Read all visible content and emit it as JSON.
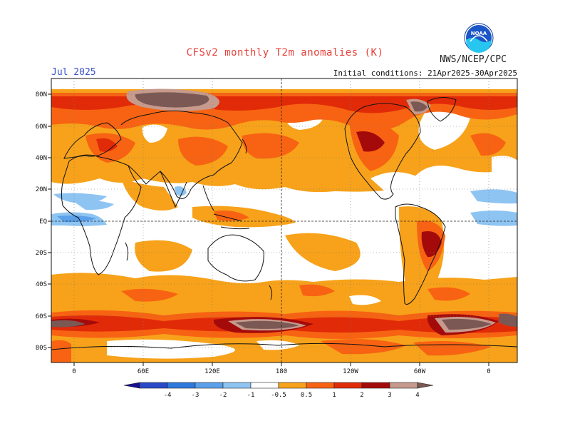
{
  "header": {
    "title": "CFSv2 monthly T2m anomalies (K)",
    "month": "Jul 2025",
    "agency": "NWS/NCEP/CPC",
    "initial_conditions": "Initial conditions: 21Apr2025-30Apr2025",
    "logo_text": "NOAA"
  },
  "axes": {
    "lat_labels": [
      "80N",
      "60N",
      "40N",
      "20N",
      "EQ",
      "20S",
      "40S",
      "60S",
      "80S"
    ],
    "lon_labels": [
      "0",
      "60E",
      "120E",
      "180",
      "120W",
      "60W",
      "0"
    ]
  },
  "colorbar": {
    "labels": [
      "-4",
      "-3",
      "-2",
      "-1",
      "-0.5",
      "0.5",
      "1",
      "2",
      "3",
      "4"
    ],
    "colors": [
      "#1a0f94",
      "#2a49c8",
      "#2d79dc",
      "#5aa0ea",
      "#8ec4f2",
      "#ffffff",
      "#f7a21a",
      "#f76312",
      "#e12b08",
      "#a50a0a",
      "#c69a8c",
      "#7b5853"
    ]
  },
  "chart_data": {
    "type": "heatmap",
    "title": "CFSv2 monthly T2m anomalies (K)",
    "variable": "T2m anomaly",
    "units": "K",
    "valid_month": "Jul 2025",
    "lat_range": [
      -90,
      90
    ],
    "lon_range": [
      -20,
      380
    ],
    "levels": [
      -4,
      -3,
      -2,
      -1,
      -0.5,
      0.5,
      1,
      2,
      3,
      4
    ],
    "regions": [
      {
        "name": "Greenland / Arctic Siberia",
        "anomaly": ">4"
      },
      {
        "name": "North Atlantic / Europe",
        "anomaly": "1-2"
      },
      {
        "name": "North Pacific",
        "anomaly": "0.5-2"
      },
      {
        "name": "Canada / North America",
        "anomaly": "1-3"
      },
      {
        "name": "Equatorial Atlantic",
        "anomaly": "-1 to -0.5"
      },
      {
        "name": "Central Brazil",
        "anomaly": "3-4"
      },
      {
        "name": "Tropical Pacific",
        "anomaly": "-0.5 to 0.5"
      },
      {
        "name": "Southern Ocean ring (60S)",
        "anomaly": ">3"
      },
      {
        "name": "Antarctica",
        "anomaly": "0.5-2"
      }
    ]
  }
}
